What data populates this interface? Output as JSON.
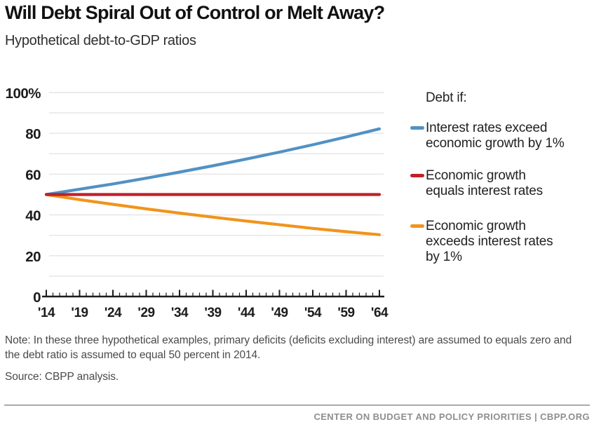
{
  "page": {
    "title": "Will Debt Spiral Out of Control or Melt Away?",
    "subtitle": "Hypothetical debt-to-GDP ratios",
    "note": "Note: In these three hypothetical examples, primary deficits (deficits excluding interest) are assumed to equals zero and the debt ratio is assumed to equal 50 percent in 2014.",
    "source": "Source: CBPP analysis.",
    "footer": "CENTER ON BUDGET AND POLICY PRIORITIES | CBPP.ORG"
  },
  "legend": {
    "title": "Debt if:",
    "items": [
      {
        "id": "interest-exceeds-growth",
        "label": "Interest rates exceed economic growth by 1%",
        "color": "#5291c4"
      },
      {
        "id": "growth-equals-rates",
        "label": "Economic growth equals interest rates",
        "color": "#c0202a"
      },
      {
        "id": "growth-exceeds-rates",
        "label": "Economic growth exceeds interest rates by 1%",
        "color": "#f0941c"
      }
    ]
  },
  "chart_data": {
    "type": "line",
    "title": "Will Debt Spiral Out of Control or Melt Away?",
    "subtitle": "Hypothetical debt-to-GDP ratios",
    "xlabel": "",
    "ylabel": "",
    "x": [
      2014,
      2019,
      2024,
      2029,
      2034,
      2039,
      2044,
      2049,
      2054,
      2059,
      2064
    ],
    "x_tick_labels": [
      "'14",
      "'19",
      "'24",
      "'29",
      "'34",
      "'39",
      "'44",
      "'49",
      "'54",
      "'59",
      "'64"
    ],
    "x_minor_tick_every_years": 1,
    "series": [
      {
        "id": "interest-exceeds-growth",
        "name": "Interest rates exceed economic growth by 1%",
        "color": "#5291c4",
        "values": [
          50,
          52.6,
          55.2,
          58.0,
          61.0,
          64.1,
          67.4,
          70.8,
          74.4,
          78.2,
          82.2
        ]
      },
      {
        "id": "growth-equals-rates",
        "name": "Economic growth equals interest rates",
        "color": "#c0202a",
        "values": [
          50,
          50,
          50,
          50,
          50,
          50,
          50,
          50,
          50,
          50,
          50
        ]
      },
      {
        "id": "growth-exceeds-rates",
        "name": "Economic growth exceeds interest rates by 1%",
        "color": "#f0941c",
        "values": [
          50,
          47.5,
          45.2,
          43.0,
          40.9,
          38.9,
          37.0,
          35.2,
          33.4,
          31.8,
          30.3
        ]
      }
    ],
    "ylim": [
      0,
      100
    ],
    "y_ticks": [
      0,
      20,
      40,
      60,
      80,
      100
    ],
    "y_tick_labels": [
      "0",
      "20",
      "40",
      "60",
      "80",
      "100%"
    ],
    "grid": "horizontal, every 10 units",
    "legend_position": "right"
  },
  "style": {
    "grid_color": "#e4e4e4",
    "axis_color": "#1c1c1c",
    "title_color": "#111111",
    "note_color": "#4a4a4a",
    "footer_color": "#8e8e8e",
    "background": "#ffffff"
  }
}
